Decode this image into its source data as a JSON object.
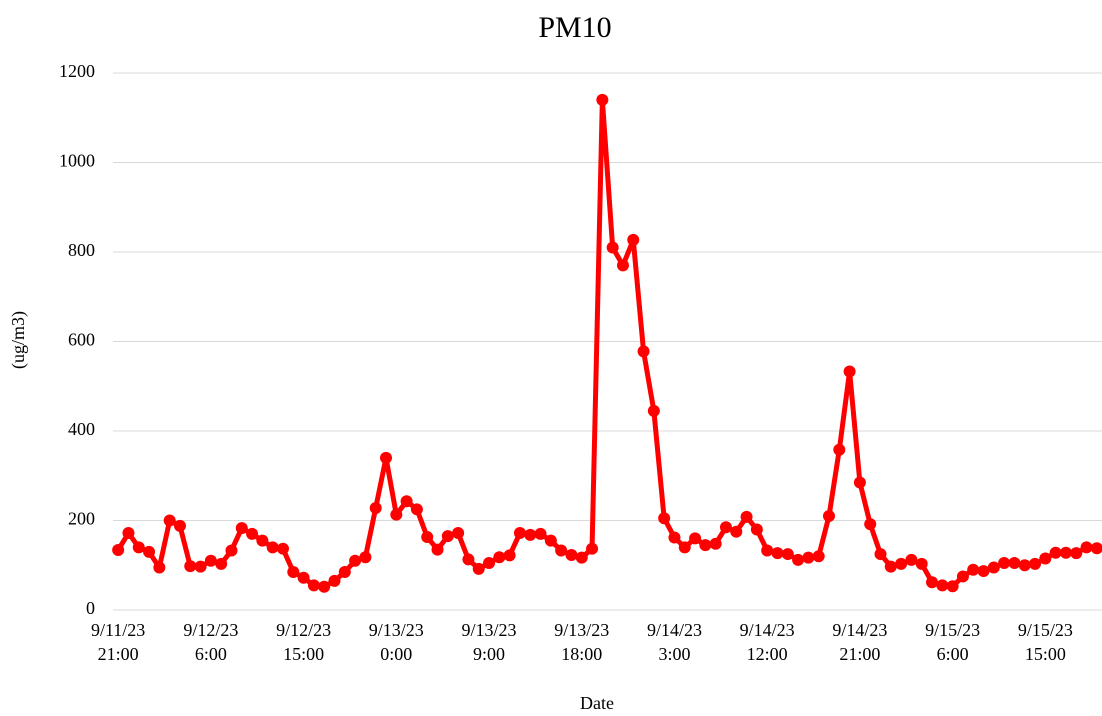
{
  "chart_data": {
    "type": "line",
    "title": "PM10",
    "x_label": "Date",
    "y_label": "(ug/m3)",
    "categories": [
      "9/11/23 21:00",
      null,
      null,
      null,
      null,
      null,
      null,
      null,
      null,
      "9/12/23 6:00",
      null,
      null,
      null,
      null,
      null,
      null,
      null,
      null,
      "9/12/23 15:00",
      null,
      null,
      null,
      null,
      null,
      null,
      null,
      null,
      "9/13/23 0:00",
      null,
      null,
      null,
      null,
      null,
      null,
      null,
      null,
      "9/13/23 9:00",
      null,
      null,
      null,
      null,
      null,
      null,
      null,
      null,
      "9/13/23 18:00",
      null,
      null,
      null,
      null,
      null,
      null,
      null,
      null,
      "9/14/23 3:00",
      null,
      null,
      null,
      null,
      null,
      null,
      null,
      null,
      "9/14/23 12:00",
      null,
      null,
      null,
      null,
      null,
      null,
      null,
      null,
      "9/14/23 21:00",
      null,
      null,
      null,
      null,
      null,
      null,
      null,
      null,
      "9/15/23 6:00",
      null,
      null,
      null,
      null,
      null,
      null,
      null,
      null,
      "9/15/23 15:00",
      null,
      null,
      null,
      null,
      null
    ],
    "series": [
      {
        "name": "PM10",
        "color": "#ff0000",
        "values": [
          134,
          172,
          140,
          130,
          95,
          200,
          188,
          98,
          97,
          110,
          103,
          133,
          183,
          170,
          155,
          140,
          137,
          85,
          72,
          55,
          52,
          65,
          85,
          110,
          118,
          228,
          340,
          213,
          243,
          225,
          163,
          135,
          165,
          172,
          113,
          92,
          105,
          118,
          122,
          172,
          168,
          170,
          155,
          133,
          123,
          117,
          137,
          1140,
          810,
          770,
          827,
          578,
          445,
          205,
          162,
          140,
          160,
          145,
          148,
          185,
          175,
          208,
          180,
          133,
          127,
          125,
          112,
          117,
          120,
          210,
          358,
          533,
          285,
          192,
          125,
          97,
          103,
          112,
          103,
          62,
          55,
          53,
          75,
          90,
          87,
          95,
          105,
          105,
          100,
          103,
          115,
          128,
          128,
          127,
          140,
          138
        ]
      }
    ],
    "ylim": [
      0,
      1200
    ],
    "yticks": [
      0,
      200,
      400,
      600,
      800,
      1000,
      1200
    ],
    "grid": true
  }
}
